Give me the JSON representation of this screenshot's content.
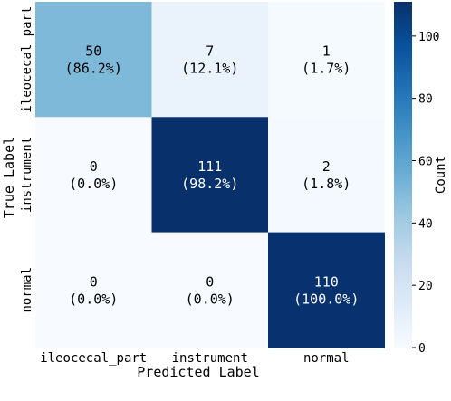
{
  "chart_data": {
    "type": "heatmap",
    "title": "",
    "xlabel": "Predicted Label",
    "ylabel": "True Label",
    "x_categories": [
      "ileocecal_part",
      "instrument",
      "normal"
    ],
    "y_categories": [
      "ileocecal_part",
      "instrument",
      "normal"
    ],
    "values": [
      [
        50,
        7,
        1
      ],
      [
        0,
        111,
        2
      ],
      [
        0,
        0,
        110
      ]
    ],
    "percent_labels": [
      [
        "(86.2%)",
        "(12.1%)",
        "(1.7%)"
      ],
      [
        "(0.0%)",
        "(98.2%)",
        "(1.8%)"
      ],
      [
        "(0.0%)",
        "(0.0%)",
        "(100.0%)"
      ]
    ],
    "colorbar": {
      "label": "Count",
      "min": 0,
      "max": 111,
      "ticks": [
        0,
        20,
        40,
        60,
        80,
        100
      ]
    },
    "colormap": [
      "#f7fbff",
      "#deebf7",
      "#c6dbef",
      "#9ecae1",
      "#6baed6",
      "#4292c6",
      "#2171b5",
      "#08519c",
      "#08306b"
    ]
  }
}
